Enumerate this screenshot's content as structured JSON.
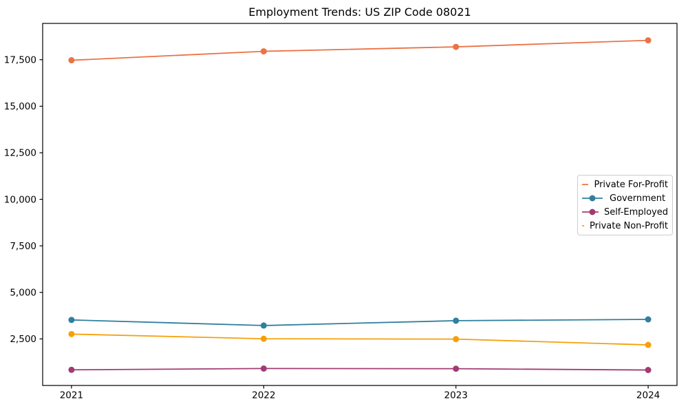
{
  "chart_data": {
    "type": "line",
    "title": "Employment Trends: US ZIP Code 08021",
    "x": [
      "2021",
      "2022",
      "2023",
      "2024"
    ],
    "xlabel": "",
    "ylabel": "",
    "series": [
      {
        "name": "Private For-Profit",
        "color": "#EB7245",
        "values": [
          17470,
          17950,
          18190,
          18540
        ]
      },
      {
        "name": "Government",
        "color": "#2F7F9E",
        "values": [
          3520,
          3220,
          3480,
          3550
        ]
      },
      {
        "name": "Self-Employed",
        "color": "#A23B72",
        "values": [
          840,
          910,
          900,
          830
        ]
      },
      {
        "name": "Private Non-Profit",
        "color": "#F5A00A",
        "values": [
          2760,
          2510,
          2490,
          2180
        ]
      }
    ],
    "yticks": [
      2500,
      5000,
      7500,
      10000,
      12500,
      15000,
      17500
    ],
    "ylim": [
      0,
      19450
    ],
    "grid": false,
    "legend_position": "center-right",
    "marker": "circle",
    "axis_color": "#000000",
    "background": "#ffffff"
  }
}
